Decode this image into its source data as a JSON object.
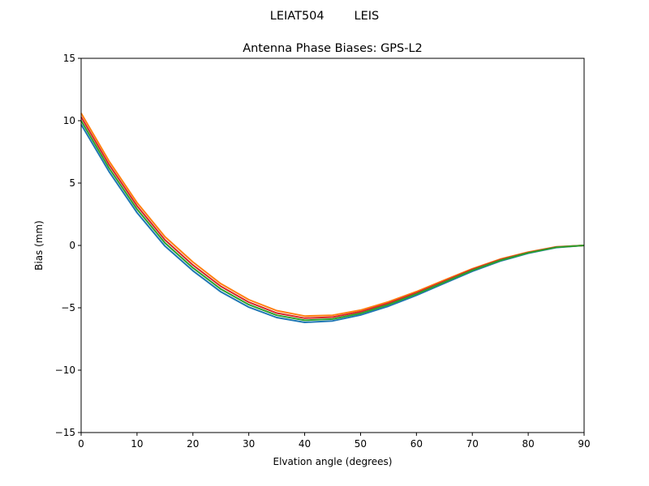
{
  "chart_data": {
    "type": "line",
    "suptitle": "LEIAT504        LEIS",
    "title": "Antenna Phase Biases: GPS-L2",
    "xlabel": "Elvation angle (degrees)",
    "ylabel": "Bias (mm)",
    "xlim": [
      0,
      90
    ],
    "ylim": [
      -15,
      15
    ],
    "xticks": [
      "0",
      "10",
      "20",
      "30",
      "40",
      "50",
      "60",
      "70",
      "80",
      "90"
    ],
    "yticks": [
      "15",
      "10",
      "5",
      "0",
      "−5",
      "−10",
      "−15"
    ],
    "grid": false,
    "x": [
      0,
      5,
      10,
      15,
      20,
      25,
      30,
      35,
      40,
      45,
      50,
      55,
      60,
      65,
      70,
      75,
      80,
      85,
      90
    ],
    "series": [
      {
        "color": "#1f77b4",
        "values": [
          9.7,
          5.92,
          2.63,
          -0.05,
          -2.03,
          -3.72,
          -4.95,
          -5.78,
          -6.17,
          -6.05,
          -5.58,
          -4.87,
          -4.0,
          -3.03,
          -2.07,
          -1.25,
          -0.63,
          -0.17,
          0
        ]
      },
      {
        "color": "#ff7f0e",
        "values": [
          10.6,
          6.76,
          3.43,
          0.7,
          -1.33,
          -3.07,
          -4.35,
          -5.23,
          -5.66,
          -5.6,
          -5.19,
          -4.52,
          -3.7,
          -2.78,
          -1.87,
          -1.1,
          -0.53,
          -0.11,
          0
        ]
      },
      {
        "color": "#d62728",
        "values": [
          10.3,
          6.48,
          3.17,
          0.45,
          -1.57,
          -3.28,
          -4.55,
          -5.42,
          -5.83,
          -5.75,
          -5.32,
          -4.63,
          -3.8,
          -2.87,
          -1.93,
          -1.15,
          -0.57,
          -0.13,
          0
        ]
      },
      {
        "color": "#2ca02c",
        "values": [
          10.0,
          6.2,
          2.9,
          0.2,
          -1.8,
          -3.5,
          -4.75,
          -5.6,
          -6.0,
          -5.9,
          -5.45,
          -4.75,
          -3.9,
          -2.95,
          -2.0,
          -1.2,
          -0.6,
          -0.15,
          0
        ]
      }
    ]
  }
}
